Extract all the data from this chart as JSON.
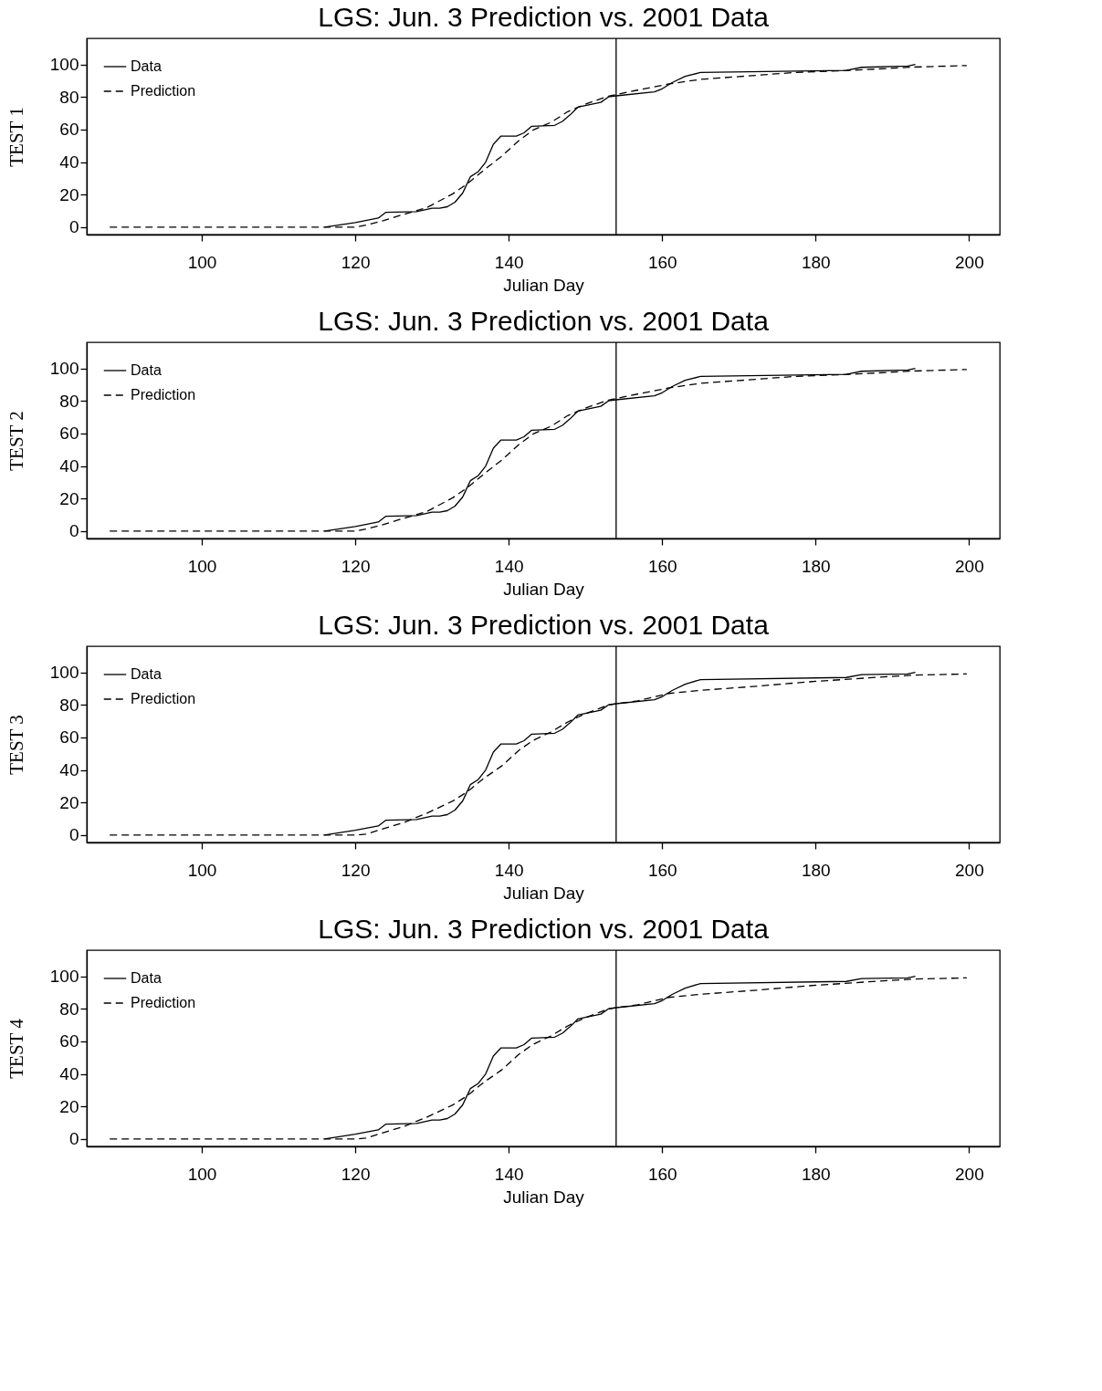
{
  "chart_data": [
    {
      "type": "line",
      "title": "LGS: Jun. 3 Prediction vs. 2001 Data",
      "xlabel": "Julian Day",
      "ylabel": "TEST 1",
      "xlim": [
        85,
        204
      ],
      "ylim": [
        -4.5,
        116
      ],
      "xticks": [
        100,
        120,
        140,
        160,
        180,
        200
      ],
      "yticks": [
        0,
        20,
        40,
        60,
        80,
        100
      ],
      "legend": "top left",
      "ref_lines": [
        {
          "axis": "x",
          "value": 154,
          "label": null
        }
      ],
      "series": [
        {
          "name": "Data",
          "color": "#000000",
          "line_style": "solid",
          "x": [
            116,
            120,
            123,
            124,
            128,
            130,
            131,
            132,
            133,
            134,
            135,
            136,
            137,
            138,
            139,
            141,
            142,
            143,
            146,
            147,
            148,
            149,
            152,
            153,
            154,
            159,
            160,
            161.3,
            163,
            165,
            184,
            186,
            192,
            193
          ],
          "values": [
            0,
            2.8,
            5.6,
            9.2,
            9.6,
            11.7,
            11.7,
            12.6,
            15.4,
            21,
            31,
            34,
            40,
            51,
            56,
            56,
            58,
            62,
            62.6,
            65,
            69,
            73.7,
            76.7,
            80,
            80.7,
            83.2,
            85,
            88.8,
            92.7,
            95,
            96.3,
            98.2,
            99,
            100
          ]
        },
        {
          "name": "Prediction",
          "color": "#000000",
          "line_style": "dashed",
          "x": [
            88,
            120,
            121.4,
            123.7,
            126.3,
            129.3,
            132.7,
            134.6,
            136.8,
            139.1,
            141.3,
            143.2,
            145.5,
            147.7,
            150.4,
            153,
            156.8,
            160.9,
            165,
            177.5,
            185,
            192.5,
            199.7
          ],
          "values": [
            0,
            0,
            1.3,
            4.1,
            7.9,
            12,
            20.5,
            26.7,
            35.2,
            43.7,
            53.1,
            59.7,
            64.4,
            71,
            76.3,
            80.5,
            84.2,
            88,
            90.8,
            95.1,
            96.4,
            98.3,
            99.3
          ]
        }
      ]
    },
    {
      "type": "line",
      "title": "LGS: Jun. 3 Prediction vs. 2001 Data",
      "xlabel": "Julian Day",
      "ylabel": "TEST 2",
      "xlim": [
        85,
        204
      ],
      "ylim": [
        -4.5,
        116
      ],
      "xticks": [
        100,
        120,
        140,
        160,
        180,
        200
      ],
      "yticks": [
        0,
        20,
        40,
        60,
        80,
        100
      ],
      "legend": "top left",
      "ref_lines": [
        {
          "axis": "x",
          "value": 154,
          "label": null
        }
      ],
      "series": [
        {
          "name": "Data",
          "color": "#000000",
          "line_style": "solid",
          "x": [
            116,
            120,
            123,
            124,
            128,
            130,
            131,
            132,
            133,
            134,
            135,
            136,
            137,
            138,
            139,
            141,
            142,
            143,
            146,
            147,
            148,
            149,
            152,
            153,
            154,
            159,
            160,
            161.3,
            163,
            165,
            184,
            186,
            192,
            193
          ],
          "values": [
            0,
            2.8,
            5.6,
            9.2,
            9.6,
            11.7,
            11.7,
            12.6,
            15.4,
            21,
            31,
            34,
            40,
            51,
            56,
            56,
            58,
            62,
            62.6,
            65,
            69,
            73.7,
            76.7,
            80,
            80.7,
            83.2,
            85,
            88.8,
            92.7,
            95,
            96.3,
            98.2,
            99,
            100
          ]
        },
        {
          "name": "Prediction",
          "color": "#000000",
          "line_style": "dashed",
          "x": [
            88,
            120,
            121.4,
            123.7,
            126.3,
            129.3,
            132.7,
            134.6,
            136.8,
            139.1,
            141.3,
            143.2,
            145.5,
            147.7,
            150.4,
            153,
            156.8,
            160.9,
            165,
            177.5,
            185,
            192.5,
            199.7
          ],
          "values": [
            0,
            0,
            1.3,
            4.1,
            7.9,
            12,
            20.5,
            26.7,
            35.2,
            43.7,
            53.1,
            59.7,
            64.4,
            71,
            76.3,
            80.5,
            84.2,
            88,
            90.8,
            95.1,
            96.4,
            98.3,
            99.3
          ]
        }
      ]
    },
    {
      "type": "line",
      "title": "LGS: Jun. 3 Prediction vs. 2001 Data",
      "xlabel": "Julian Day",
      "ylabel": "TEST 3",
      "xlim": [
        85,
        204
      ],
      "ylim": [
        -4.5,
        116
      ],
      "xticks": [
        100,
        120,
        140,
        160,
        180,
        200
      ],
      "yticks": [
        0,
        20,
        40,
        60,
        80,
        100
      ],
      "legend": "top left",
      "ref_lines": [
        {
          "axis": "x",
          "value": 154,
          "label": null
        }
      ],
      "series": [
        {
          "name": "Data",
          "color": "#000000",
          "line_style": "solid",
          "x": [
            116,
            120,
            123,
            124,
            128,
            130,
            131,
            132,
            133,
            134,
            135,
            136,
            137,
            138,
            139,
            141,
            142,
            143,
            146,
            147,
            148,
            149,
            152,
            153,
            154,
            159,
            160,
            161.3,
            163,
            165,
            184,
            186,
            192,
            193
          ],
          "values": [
            0,
            3,
            5.6,
            9.2,
            9.6,
            11.7,
            11.7,
            12.6,
            15.4,
            21,
            31,
            34,
            40,
            51,
            56,
            56,
            58,
            62,
            62.6,
            65,
            69,
            73.7,
            76.7,
            80,
            80.7,
            83.2,
            85,
            88.8,
            92.7,
            95.5,
            96.8,
            98.5,
            99,
            100
          ]
        },
        {
          "name": "Prediction",
          "color": "#000000",
          "line_style": "dashed",
          "x": [
            88,
            120,
            121.4,
            123.7,
            126.3,
            129.3,
            132.7,
            134.6,
            136.8,
            139.1,
            141.3,
            143.2,
            145.5,
            147.7,
            150,
            153,
            156.8,
            160.9,
            165,
            172.5,
            179,
            187,
            192.5,
            199.7
          ],
          "values": [
            0,
            0,
            0.6,
            4,
            7.7,
            13.4,
            20.9,
            26.6,
            35,
            42.5,
            52,
            58.2,
            63.3,
            69.5,
            74.6,
            79.9,
            82.5,
            87,
            88.9,
            91.5,
            94.1,
            96.6,
            98.2,
            99
          ]
        }
      ]
    },
    {
      "type": "line",
      "title": "LGS: Jun. 3 Prediction vs. 2001 Data",
      "xlabel": "Julian Day",
      "ylabel": "TEST 4",
      "xlim": [
        85,
        204
      ],
      "ylim": [
        -4.5,
        116
      ],
      "xticks": [
        100,
        120,
        140,
        160,
        180,
        200
      ],
      "yticks": [
        0,
        20,
        40,
        60,
        80,
        100
      ],
      "legend": "top left",
      "ref_lines": [
        {
          "axis": "x",
          "value": 154,
          "label": null
        }
      ],
      "series": [
        {
          "name": "Data",
          "color": "#000000",
          "line_style": "solid",
          "x": [
            116,
            120,
            123,
            124,
            128,
            130,
            131,
            132,
            133,
            134,
            135,
            136,
            137,
            138,
            139,
            141,
            142,
            143,
            146,
            147,
            148,
            149,
            152,
            153,
            154,
            159,
            160,
            161.3,
            163,
            165,
            184,
            186,
            192,
            193
          ],
          "values": [
            0,
            3,
            5.6,
            9.2,
            9.6,
            11.7,
            11.7,
            12.6,
            15.4,
            21,
            31,
            34,
            40,
            51,
            56,
            56,
            58,
            62,
            62.6,
            65,
            69,
            73.7,
            76.7,
            80,
            80.7,
            83.2,
            85,
            88.8,
            92.7,
            95.5,
            96.8,
            98.5,
            99,
            100
          ]
        },
        {
          "name": "Prediction",
          "color": "#000000",
          "line_style": "dashed",
          "x": [
            88,
            120,
            121.4,
            123.7,
            126.3,
            129.3,
            132.7,
            134.6,
            136.8,
            139.1,
            141.3,
            143.2,
            145.5,
            147.7,
            150,
            153,
            156.8,
            160.9,
            165,
            172.5,
            179,
            187,
            192.5,
            199.7
          ],
          "values": [
            0,
            0,
            0.6,
            4,
            7.7,
            13.4,
            20.9,
            26.6,
            35,
            42.5,
            52,
            58.2,
            63.3,
            69.5,
            74.6,
            79.9,
            82.5,
            87,
            88.9,
            91.5,
            94.1,
            96.6,
            98.2,
            99
          ]
        }
      ]
    }
  ]
}
